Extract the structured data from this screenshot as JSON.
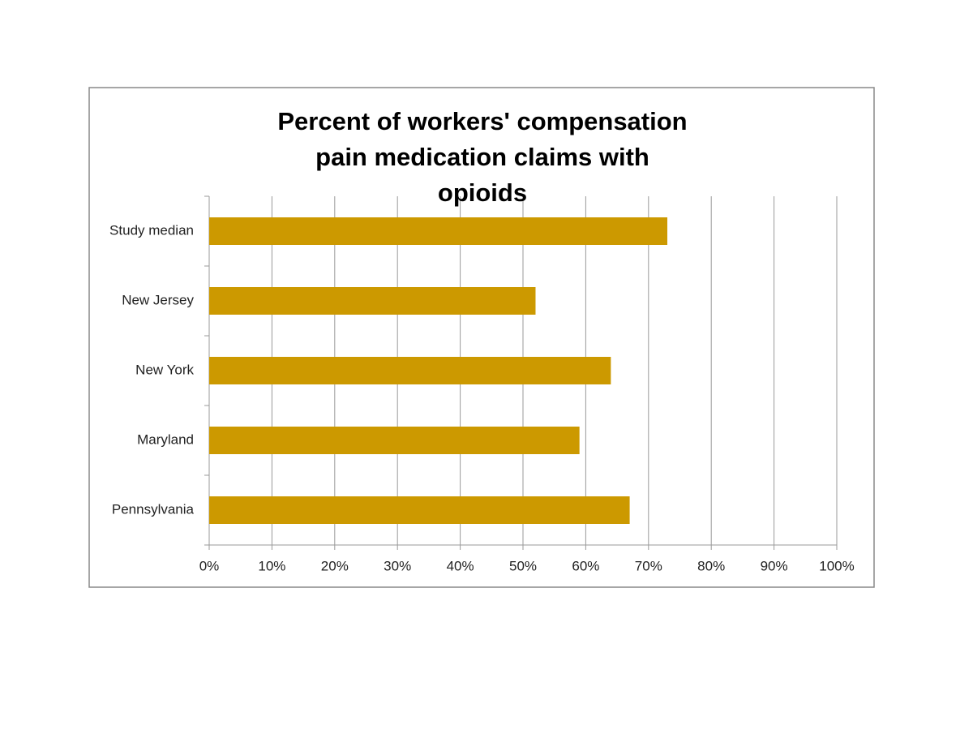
{
  "chart_data": {
    "type": "bar",
    "orientation": "horizontal",
    "title": "Percent of workers' compensation pain medication claims with opioids",
    "categories": [
      "Study median",
      "New Jersey",
      "New York",
      "Maryland",
      "Pennsylvania"
    ],
    "values": [
      73,
      52,
      64,
      59,
      67
    ],
    "color": "#cc9900",
    "xlim": [
      0,
      100
    ],
    "xticks": [
      {
        "value": 0,
        "label": "0%"
      },
      {
        "value": 10,
        "label": "10%"
      },
      {
        "value": 20,
        "label": "20%"
      },
      {
        "value": 30,
        "label": "30%"
      },
      {
        "value": 40,
        "label": "40%"
      },
      {
        "value": 50,
        "label": "50%"
      },
      {
        "value": 60,
        "label": "60%"
      },
      {
        "value": 70,
        "label": "70%"
      },
      {
        "value": 80,
        "label": "80%"
      },
      {
        "value": 90,
        "label": "90%"
      },
      {
        "value": 100,
        "label": "100%"
      }
    ],
    "grid": true
  }
}
